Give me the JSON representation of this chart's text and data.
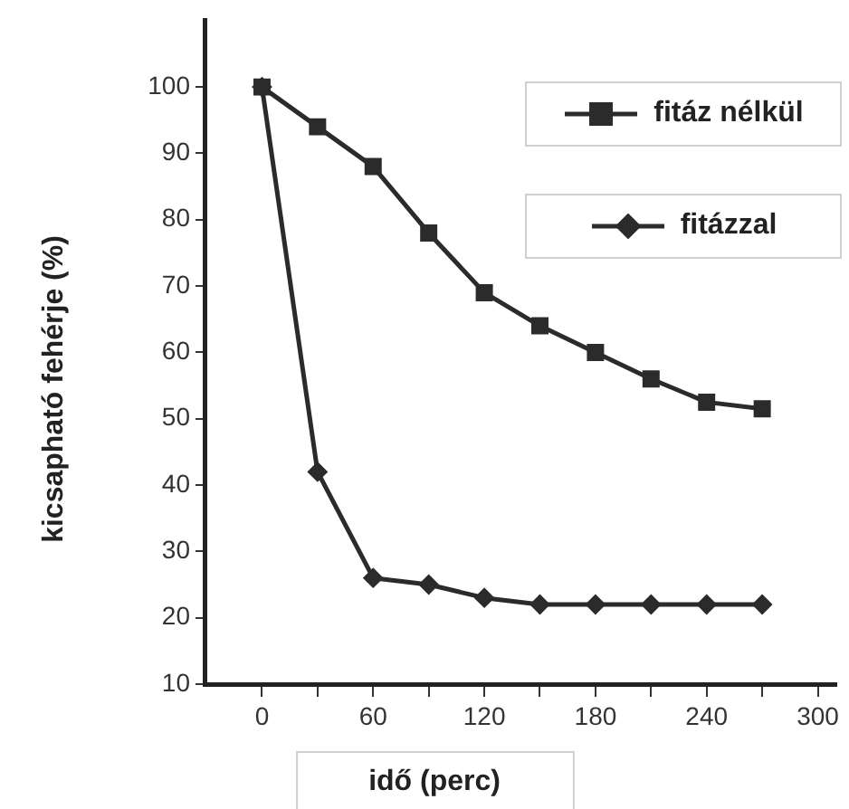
{
  "chart_data": {
    "type": "line",
    "xlabel": "idő (perc)",
    "ylabel": "kicsapható fehérje (%)",
    "x": [
      0,
      30,
      60,
      90,
      120,
      150,
      180,
      210,
      240,
      270
    ],
    "series": [
      {
        "name": "fitáz nélkül",
        "color": "#2b2b2b",
        "marker": "square",
        "values": [
          100,
          94,
          88,
          78,
          69,
          64,
          60,
          56,
          52.5,
          51.5
        ]
      },
      {
        "name": "fitázzal",
        "color": "#2b2b2b",
        "marker": "diamond",
        "values": [
          100,
          42,
          26,
          25,
          23,
          22,
          22,
          22,
          22,
          22
        ]
      }
    ],
    "xlim": [
      -31,
      310
    ],
    "xticks": [
      0,
      {
        "value": 30,
        "label": null
      },
      60,
      {
        "value": 90,
        "label": null
      },
      120,
      {
        "value": 150,
        "label": null
      },
      180,
      {
        "value": 210,
        "label": null
      },
      240,
      {
        "value": 270,
        "label": null
      },
      300
    ],
    "ylim": [
      10,
      110
    ],
    "yticks": [
      10,
      20,
      30,
      40,
      50,
      60,
      70,
      80,
      90,
      100
    ],
    "grid": false,
    "legend": "top right",
    "line_style": "solid"
  }
}
